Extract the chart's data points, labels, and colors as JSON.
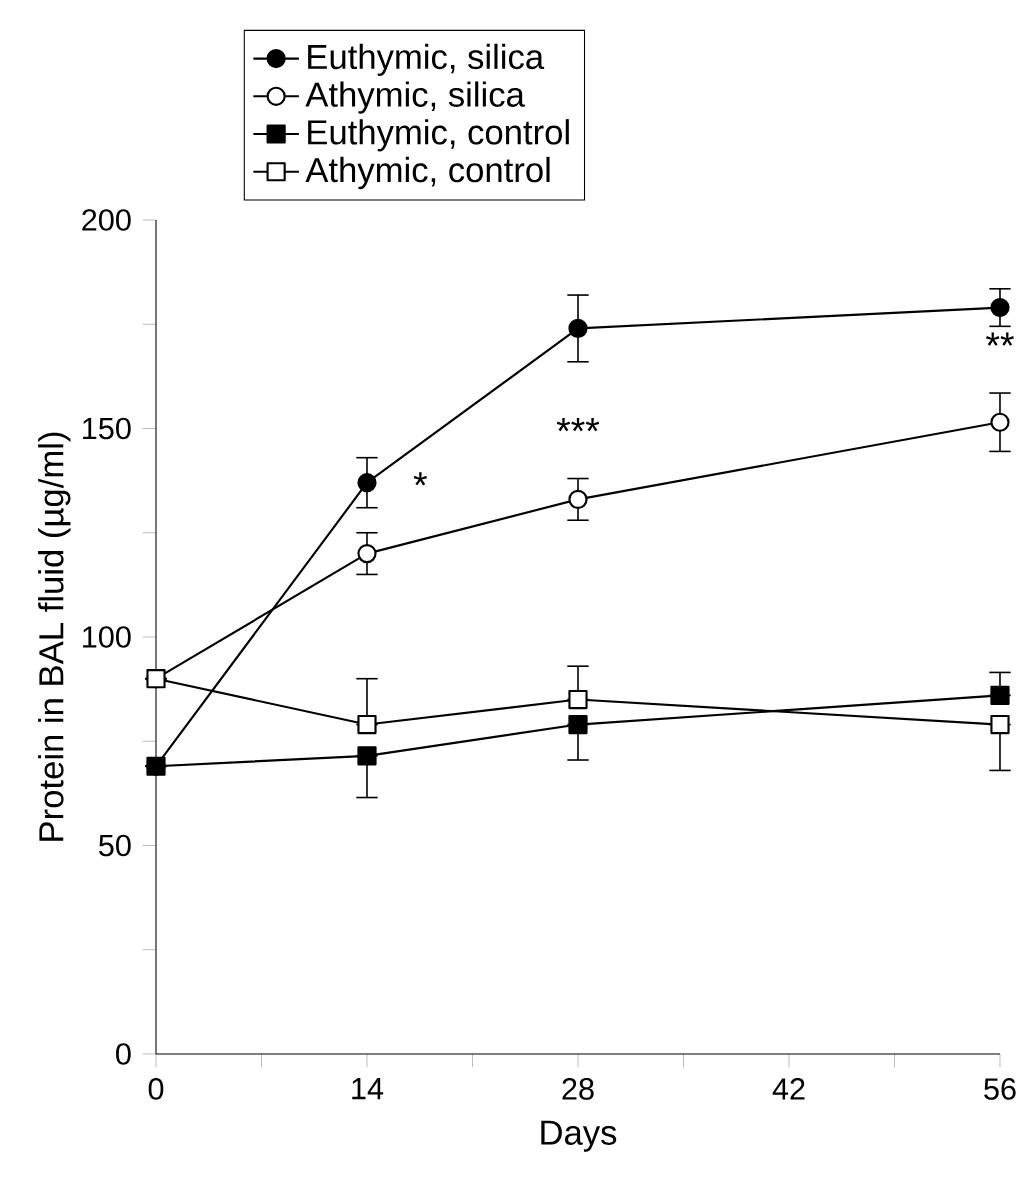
{
  "chart_data": {
    "type": "line",
    "xlabel": "Days",
    "ylabel": "Protein in BAL fluid (µg/ml)",
    "x": [
      0,
      14,
      28,
      56
    ],
    "xlim": [
      0,
      56
    ],
    "ylim": [
      0,
      200
    ],
    "xticks": [
      0,
      {
        "value": 7,
        "label": null
      },
      14,
      {
        "value": 21,
        "label": null
      },
      28,
      {
        "value": 35,
        "label": null
      },
      42,
      {
        "value": 49,
        "label": null
      },
      56
    ],
    "yticks": [
      0,
      {
        "value": 25,
        "label": null
      },
      50,
      {
        "value": 75,
        "label": null
      },
      100,
      {
        "value": 125,
        "label": null
      },
      150,
      {
        "value": 175,
        "label": null
      },
      200
    ],
    "legend": "top left",
    "grid": false,
    "line_style": "solid",
    "series": [
      {
        "name": "Euthymic, silica",
        "color": "#000000",
        "marker": "circle",
        "values": [
          69,
          137,
          174,
          179
        ],
        "errors": [
          null,
          6,
          8,
          4.5
        ]
      },
      {
        "name": "Athymic, silica",
        "color": "#ffffff",
        "marker": "circle",
        "values": [
          90,
          120,
          133,
          151.5
        ],
        "errors": [
          null,
          5,
          5,
          7
        ]
      },
      {
        "name": "Euthymic, control",
        "color": "#000000",
        "marker": "square",
        "values": [
          69,
          71.5,
          79,
          86
        ],
        "errors": [
          null,
          [
            61.5,
            71.5
          ],
          [
            70.5,
            79
          ],
          [
            86,
            91.5
          ]
        ]
      },
      {
        "name": "Athymic, control",
        "color": "#ffffff",
        "marker": "square",
        "values": [
          90,
          79,
          85,
          79
        ],
        "errors": [
          null,
          [
            79,
            90
          ],
          [
            85,
            93
          ],
          [
            68,
            79
          ]
        ]
      }
    ],
    "annotations": [
      "*",
      "***",
      "**"
    ]
  }
}
